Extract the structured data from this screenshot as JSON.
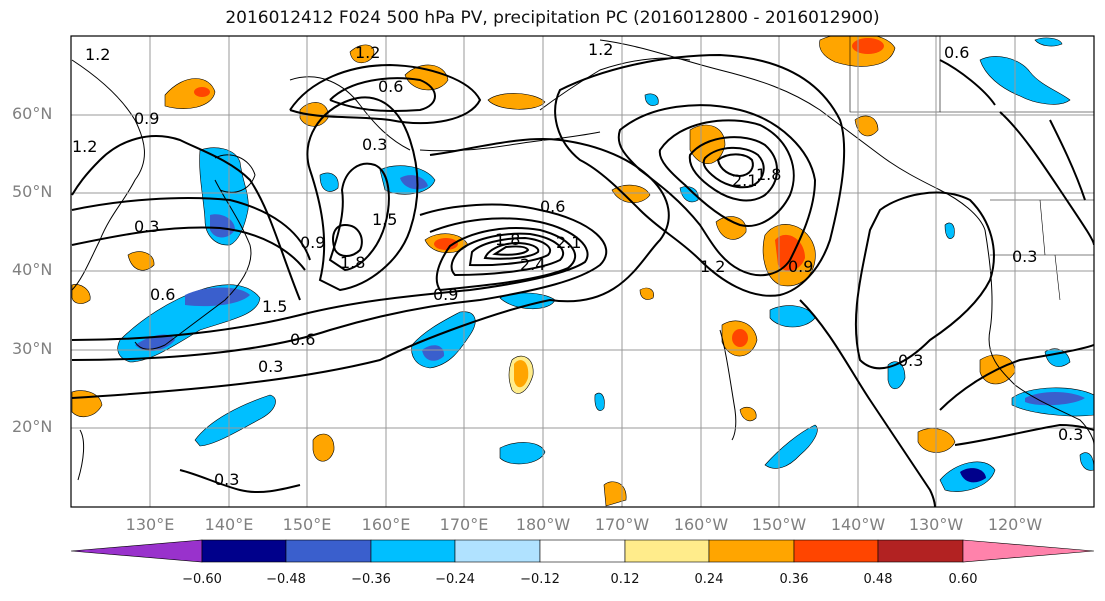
{
  "title": "2016012412 F024 500 hPa PV, precipitation PC (2016012800 - 2016012900)",
  "map": {
    "lat_labels": [
      "60°N",
      "50°N",
      "40°N",
      "30°N",
      "20°N"
    ],
    "lon_labels": [
      "130°E",
      "140°E",
      "150°E",
      "160°E",
      "170°E",
      "180°W",
      "170°W",
      "160°W",
      "150°W",
      "140°W",
      "130°W",
      "120°W"
    ],
    "pv_contour_labels": [
      "1.2",
      "1.2",
      "1.2",
      "0.9",
      "1.2",
      "0.6",
      "0.3",
      "0.9",
      "1.5",
      "1.8",
      "0.6",
      "1.8",
      "2.4",
      "2.1",
      "1.2",
      "1.8",
      "2.1",
      "0.9",
      "0.6",
      "0.6",
      "0.3",
      "0.3",
      "0.9",
      "1.5",
      "0.3",
      "0.3",
      "0.3",
      "0.3",
      "0.6"
    ],
    "pv_contour_levels": [
      0.3,
      0.6,
      0.9,
      1.2,
      1.5,
      1.8,
      2.1,
      2.4
    ],
    "shading_field": "precipitation PC"
  },
  "colorbar": {
    "tick_labels": [
      "−0.60",
      "−0.48",
      "−0.36",
      "−0.24",
      "−0.12",
      "0.12",
      "0.24",
      "0.36",
      "0.48",
      "0.60"
    ],
    "colors": [
      "#9932cc",
      "#00008b",
      "#3a5fcd",
      "#00bfff",
      "#b0e2ff",
      "#ffffff",
      "#ffec8b",
      "#ffa500",
      "#ff4500",
      "#b22222",
      "#ff82ab"
    ]
  }
}
